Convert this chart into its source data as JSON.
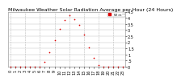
{
  "title": "Milwaukee Weather Solar Radiation Average per Hour (24 Hours)",
  "hours": [
    0,
    1,
    2,
    3,
    4,
    5,
    6,
    7,
    8,
    9,
    10,
    11,
    12,
    13,
    14,
    15,
    16,
    17,
    18,
    19,
    20,
    21,
    22,
    23
  ],
  "solar_radiation": [
    0,
    0,
    0,
    0,
    0,
    0,
    3,
    40,
    120,
    220,
    310,
    380,
    420,
    390,
    340,
    260,
    160,
    70,
    10,
    0,
    0,
    0,
    0,
    0
  ],
  "dot_color": "#dd0000",
  "background_color": "#ffffff",
  "grid_color": "#bbbbbb",
  "ylim": [
    0,
    450
  ],
  "xlim": [
    -0.5,
    23.5
  ],
  "yticks": [
    0,
    50,
    100,
    150,
    200,
    250,
    300,
    350,
    400,
    450
  ],
  "ytick_labels": [
    "0",
    ".5",
    "1",
    "1.5",
    "2",
    "2.5",
    "3",
    "3.5",
    "4",
    "4.5"
  ],
  "legend_label": "W m⁻²",
  "legend_color": "#dd0000",
  "title_fontsize": 4.5,
  "tick_fontsize": 3.5,
  "marker_size": 1.5,
  "vgrid_hours": [
    0,
    3,
    6,
    9,
    12,
    15,
    18,
    21
  ]
}
